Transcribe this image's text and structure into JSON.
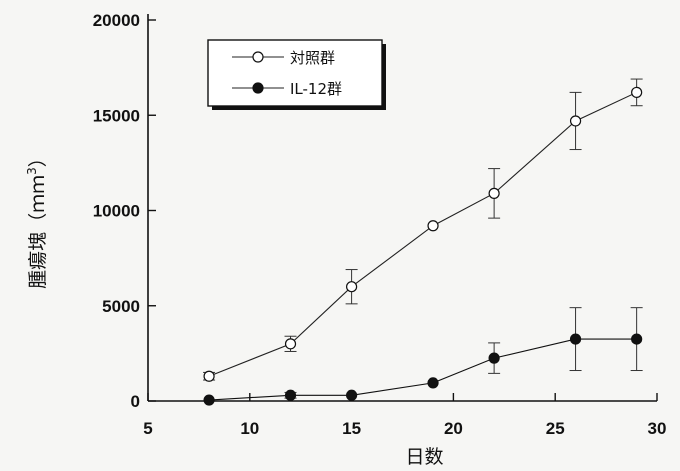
{
  "chart_data": {
    "type": "line",
    "title": "",
    "xlabel": "日数",
    "ylabel": "腫瘍塊（mm3）",
    "ylabel_parts": {
      "text": "腫瘍塊（ｍｍ",
      "sup": "3",
      "close": "）"
    },
    "xlim": [
      5,
      30
    ],
    "ylim": [
      0,
      20000
    ],
    "xticks": [
      5,
      10,
      15,
      20,
      25,
      30
    ],
    "yticks": [
      0,
      5000,
      10000,
      15000,
      20000
    ],
    "xtick_labels": [
      "5",
      "10",
      "15",
      "20",
      "25",
      "30"
    ],
    "ytick_labels": [
      "0",
      "5000",
      "10000",
      "15000",
      "20000"
    ],
    "grid": false,
    "legend_position": "top-left",
    "series": [
      {
        "name": "対照群",
        "marker": "open-circle",
        "color": "#222222",
        "x": [
          8,
          12,
          15,
          19,
          22,
          26,
          29
        ],
        "y": [
          1300,
          3000,
          6000,
          9200,
          10900,
          14700,
          16200
        ],
        "err": [
          200,
          400,
          900,
          0,
          1300,
          1500,
          700
        ]
      },
      {
        "name": "IL-12群",
        "marker": "filled-circle",
        "color": "#111111",
        "x": [
          8,
          12,
          15,
          19,
          22,
          26,
          29
        ],
        "y": [
          50,
          300,
          300,
          950,
          2250,
          3250,
          3250
        ],
        "err": [
          0,
          150,
          0,
          0,
          800,
          1650,
          1650
        ]
      }
    ]
  }
}
